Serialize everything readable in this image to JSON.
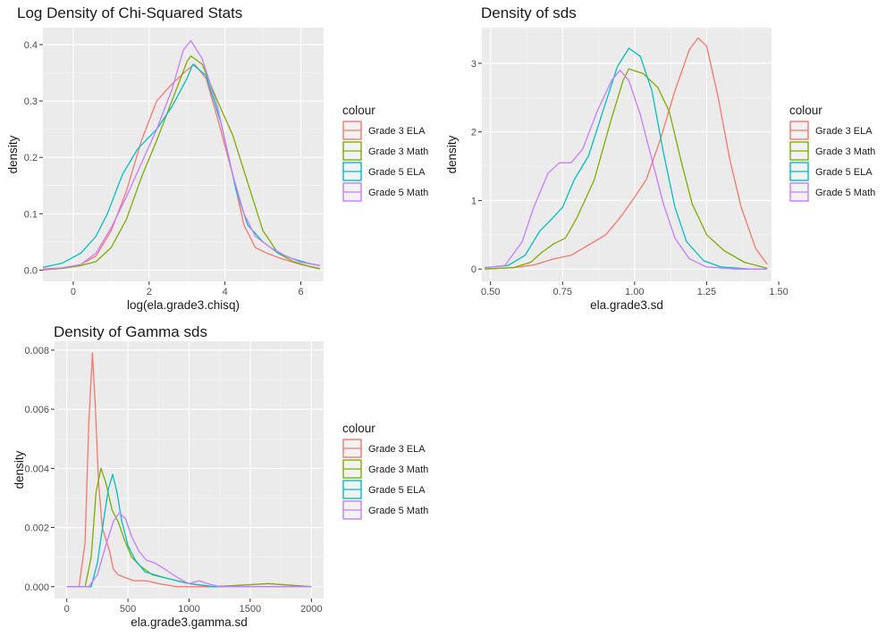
{
  "series_colors": [
    "#F8766D",
    "#7CAE00",
    "#00BFC4",
    "#C77CFF"
  ],
  "chart_data": [
    {
      "type": "line",
      "title": "Log Density of Chi-Squared Stats",
      "xlabel": "log(ela.grade3.chisq)",
      "ylabel": "density",
      "xlim": [
        -0.8,
        6.6
      ],
      "ylim": [
        -0.02,
        0.43
      ],
      "x_ticks": [
        0,
        2,
        4,
        6
      ],
      "x_tick_labels": [
        "0",
        "2",
        "4",
        "6"
      ],
      "y_ticks": [
        0,
        0.1,
        0.2,
        0.3,
        0.4
      ],
      "y_tick_labels": [
        "0.0",
        "0.1",
        "0.2",
        "0.3",
        "0.4"
      ],
      "grid": true,
      "legend": {
        "title": "colour",
        "position": "right"
      },
      "series": [
        {
          "name": "Grade 3 ELA",
          "points": [
            [
              -0.8,
              0.0
            ],
            [
              -0.3,
              0.003
            ],
            [
              0.2,
              0.01
            ],
            [
              0.6,
              0.025
            ],
            [
              1.0,
              0.07
            ],
            [
              1.4,
              0.14
            ],
            [
              1.8,
              0.23
            ],
            [
              2.2,
              0.3
            ],
            [
              2.6,
              0.33
            ],
            [
              3.0,
              0.355
            ],
            [
              3.2,
              0.365
            ],
            [
              3.5,
              0.34
            ],
            [
              3.8,
              0.27
            ],
            [
              4.2,
              0.17
            ],
            [
              4.5,
              0.08
            ],
            [
              4.8,
              0.04
            ],
            [
              5.1,
              0.03
            ],
            [
              5.5,
              0.02
            ],
            [
              6.0,
              0.01
            ],
            [
              6.5,
              0.003
            ]
          ]
        },
        {
          "name": "Grade 3 Math",
          "points": [
            [
              -0.8,
              0.002
            ],
            [
              -0.3,
              0.003
            ],
            [
              0.2,
              0.008
            ],
            [
              0.6,
              0.015
            ],
            [
              1.0,
              0.04
            ],
            [
              1.4,
              0.09
            ],
            [
              1.8,
              0.165
            ],
            [
              2.2,
              0.23
            ],
            [
              2.6,
              0.3
            ],
            [
              3.0,
              0.37
            ],
            [
              3.1,
              0.38
            ],
            [
              3.4,
              0.365
            ],
            [
              3.8,
              0.3
            ],
            [
              4.2,
              0.24
            ],
            [
              4.6,
              0.155
            ],
            [
              5.0,
              0.07
            ],
            [
              5.4,
              0.03
            ],
            [
              5.8,
              0.015
            ],
            [
              6.2,
              0.007
            ],
            [
              6.5,
              0.002
            ]
          ]
        },
        {
          "name": "Grade 5 ELA",
          "points": [
            [
              -0.8,
              0.005
            ],
            [
              -0.3,
              0.012
            ],
            [
              0.2,
              0.03
            ],
            [
              0.6,
              0.06
            ],
            [
              0.9,
              0.1
            ],
            [
              1.3,
              0.17
            ],
            [
              1.7,
              0.215
            ],
            [
              2.2,
              0.25
            ],
            [
              2.6,
              0.29
            ],
            [
              3.0,
              0.34
            ],
            [
              3.15,
              0.365
            ],
            [
              3.5,
              0.345
            ],
            [
              3.9,
              0.26
            ],
            [
              4.3,
              0.14
            ],
            [
              4.6,
              0.08
            ],
            [
              5.0,
              0.05
            ],
            [
              5.4,
              0.03
            ],
            [
              5.8,
              0.02
            ],
            [
              6.2,
              0.012
            ],
            [
              6.5,
              0.008
            ]
          ]
        },
        {
          "name": "Grade 5 Math",
          "points": [
            [
              -0.8,
              0.002
            ],
            [
              -0.3,
              0.004
            ],
            [
              0.2,
              0.01
            ],
            [
              0.6,
              0.03
            ],
            [
              1.0,
              0.075
            ],
            [
              1.4,
              0.13
            ],
            [
              1.8,
              0.19
            ],
            [
              2.2,
              0.25
            ],
            [
              2.6,
              0.32
            ],
            [
              2.9,
              0.39
            ],
            [
              3.1,
              0.407
            ],
            [
              3.4,
              0.375
            ],
            [
              3.8,
              0.29
            ],
            [
              4.2,
              0.17
            ],
            [
              4.5,
              0.1
            ],
            [
              4.8,
              0.06
            ],
            [
              5.2,
              0.04
            ],
            [
              5.6,
              0.025
            ],
            [
              6.0,
              0.014
            ],
            [
              6.5,
              0.008
            ]
          ]
        }
      ]
    },
    {
      "type": "line",
      "title": "Density of sds",
      "xlabel": "ela.grade3.sd",
      "ylabel": "density",
      "xlim": [
        0.47,
        1.475
      ],
      "ylim": [
        -0.18,
        3.52
      ],
      "x_ticks": [
        0.5,
        0.75,
        1.0,
        1.25,
        1.5
      ],
      "x_tick_labels": [
        "0.50",
        "0.75",
        "1.00",
        "1.25",
        "1.50"
      ],
      "y_ticks": [
        0,
        1,
        2,
        3
      ],
      "y_tick_labels": [
        "0",
        "1",
        "2",
        "3"
      ],
      "grid": true,
      "legend": {
        "title": "colour",
        "position": "right"
      },
      "series": [
        {
          "name": "Grade 3 ELA",
          "points": [
            [
              0.48,
              0.0
            ],
            [
              0.58,
              0.02
            ],
            [
              0.65,
              0.06
            ],
            [
              0.72,
              0.15
            ],
            [
              0.78,
              0.2
            ],
            [
              0.84,
              0.35
            ],
            [
              0.9,
              0.5
            ],
            [
              0.95,
              0.75
            ],
            [
              1.0,
              1.05
            ],
            [
              1.04,
              1.3
            ],
            [
              1.09,
              1.9
            ],
            [
              1.14,
              2.6
            ],
            [
              1.19,
              3.2
            ],
            [
              1.22,
              3.37
            ],
            [
              1.25,
              3.25
            ],
            [
              1.29,
              2.5
            ],
            [
              1.33,
              1.6
            ],
            [
              1.37,
              0.9
            ],
            [
              1.42,
              0.3
            ],
            [
              1.46,
              0.07
            ]
          ]
        },
        {
          "name": "Grade 3 Math",
          "points": [
            [
              0.48,
              0.0
            ],
            [
              0.58,
              0.02
            ],
            [
              0.64,
              0.1
            ],
            [
              0.68,
              0.25
            ],
            [
              0.72,
              0.37
            ],
            [
              0.76,
              0.45
            ],
            [
              0.8,
              0.75
            ],
            [
              0.86,
              1.3
            ],
            [
              0.92,
              2.2
            ],
            [
              0.96,
              2.75
            ],
            [
              0.98,
              2.92
            ],
            [
              1.03,
              2.85
            ],
            [
              1.08,
              2.65
            ],
            [
              1.12,
              2.3
            ],
            [
              1.16,
              1.6
            ],
            [
              1.2,
              0.95
            ],
            [
              1.25,
              0.5
            ],
            [
              1.31,
              0.27
            ],
            [
              1.38,
              0.1
            ],
            [
              1.46,
              0.01
            ]
          ]
        },
        {
          "name": "Grade 5 ELA",
          "points": [
            [
              0.48,
              0.02
            ],
            [
              0.56,
              0.05
            ],
            [
              0.62,
              0.2
            ],
            [
              0.67,
              0.55
            ],
            [
              0.71,
              0.72
            ],
            [
              0.75,
              0.9
            ],
            [
              0.79,
              1.3
            ],
            [
              0.84,
              1.65
            ],
            [
              0.89,
              2.3
            ],
            [
              0.94,
              2.95
            ],
            [
              0.98,
              3.22
            ],
            [
              1.02,
              3.1
            ],
            [
              1.06,
              2.6
            ],
            [
              1.1,
              1.7
            ],
            [
              1.14,
              0.9
            ],
            [
              1.18,
              0.4
            ],
            [
              1.24,
              0.12
            ],
            [
              1.3,
              0.03
            ],
            [
              1.4,
              0.0
            ],
            [
              1.46,
              0.0
            ]
          ]
        },
        {
          "name": "Grade 5 Math",
          "points": [
            [
              0.48,
              0.02
            ],
            [
              0.55,
              0.05
            ],
            [
              0.61,
              0.4
            ],
            [
              0.65,
              0.9
            ],
            [
              0.7,
              1.4
            ],
            [
              0.74,
              1.55
            ],
            [
              0.78,
              1.55
            ],
            [
              0.82,
              1.75
            ],
            [
              0.87,
              2.3
            ],
            [
              0.92,
              2.75
            ],
            [
              0.95,
              2.9
            ],
            [
              0.98,
              2.75
            ],
            [
              1.02,
              2.25
            ],
            [
              1.06,
              1.6
            ],
            [
              1.1,
              0.95
            ],
            [
              1.14,
              0.45
            ],
            [
              1.19,
              0.15
            ],
            [
              1.25,
              0.03
            ],
            [
              1.35,
              0.0
            ],
            [
              1.46,
              0.0
            ]
          ]
        }
      ]
    },
    {
      "type": "line",
      "title": "Density of Gamma sds",
      "xlabel": "ela.grade3.gamma.sd",
      "ylabel": "density",
      "xlim": [
        -100,
        2100
      ],
      "ylim": [
        -0.0004,
        0.0083
      ],
      "x_ticks": [
        0,
        500,
        1000,
        1500,
        2000
      ],
      "x_tick_labels": [
        "0",
        "500",
        "1000",
        "1500",
        "2000"
      ],
      "y_ticks": [
        0,
        0.002,
        0.004,
        0.006,
        0.008
      ],
      "y_tick_labels": [
        "0.000",
        "0.002",
        "0.004",
        "0.006",
        "0.008"
      ],
      "grid": true,
      "legend": {
        "title": "colour",
        "position": "right"
      },
      "series": [
        {
          "name": "Grade 3 ELA",
          "points": [
            [
              0,
              0.0
            ],
            [
              100,
              0.0
            ],
            [
              150,
              0.0015
            ],
            [
              180,
              0.0055
            ],
            [
              210,
              0.0079
            ],
            [
              235,
              0.006
            ],
            [
              260,
              0.0035
            ],
            [
              290,
              0.002
            ],
            [
              320,
              0.0016
            ],
            [
              350,
              0.0012
            ],
            [
              380,
              0.0006
            ],
            [
              420,
              0.0004
            ],
            [
              480,
              0.0003
            ],
            [
              550,
              0.0002
            ],
            [
              650,
              0.0002
            ],
            [
              750,
              0.0001
            ],
            [
              900,
              0.0
            ],
            [
              1200,
              0.0
            ],
            [
              1650,
              0.0001
            ],
            [
              2000,
              0.0
            ]
          ]
        },
        {
          "name": "Grade 3 Math",
          "points": [
            [
              0,
              0.0
            ],
            [
              150,
              0.0
            ],
            [
              200,
              0.001
            ],
            [
              240,
              0.0032
            ],
            [
              280,
              0.004
            ],
            [
              320,
              0.0035
            ],
            [
              370,
              0.0026
            ],
            [
              420,
              0.0022
            ],
            [
              470,
              0.0016
            ],
            [
              530,
              0.001
            ],
            [
              600,
              0.0007
            ],
            [
              700,
              0.0004
            ],
            [
              800,
              0.0003
            ],
            [
              900,
              0.0002
            ],
            [
              1000,
              0.0001
            ],
            [
              1200,
              0.0
            ],
            [
              1650,
              0.0001
            ],
            [
              2000,
              0.0
            ]
          ]
        },
        {
          "name": "Grade 5 ELA",
          "points": [
            [
              0,
              0.0
            ],
            [
              200,
              0.0
            ],
            [
              250,
              0.0008
            ],
            [
              300,
              0.0022
            ],
            [
              340,
              0.0033
            ],
            [
              375,
              0.0038
            ],
            [
              410,
              0.0032
            ],
            [
              450,
              0.0022
            ],
            [
              500,
              0.0014
            ],
            [
              560,
              0.0009
            ],
            [
              640,
              0.0005
            ],
            [
              720,
              0.0004
            ],
            [
              800,
              0.0003
            ],
            [
              900,
              0.0002
            ],
            [
              1000,
              0.0001
            ],
            [
              1200,
              0.0
            ],
            [
              2000,
              0.0
            ]
          ]
        },
        {
          "name": "Grade 5 Math",
          "points": [
            [
              0,
              0.0
            ],
            [
              180,
              0.0
            ],
            [
              250,
              0.0004
            ],
            [
              320,
              0.0014
            ],
            [
              380,
              0.0022
            ],
            [
              430,
              0.0025
            ],
            [
              480,
              0.0023
            ],
            [
              530,
              0.0017
            ],
            [
              590,
              0.0012
            ],
            [
              650,
              0.0009
            ],
            [
              720,
              0.0008
            ],
            [
              800,
              0.0006
            ],
            [
              870,
              0.0004
            ],
            [
              950,
              0.0002
            ],
            [
              1000,
              0.0001
            ],
            [
              1080,
              0.0002
            ],
            [
              1150,
              0.0001
            ],
            [
              1250,
              0.0
            ],
            [
              1500,
              0.0
            ],
            [
              2000,
              0.0
            ]
          ]
        }
      ]
    }
  ]
}
